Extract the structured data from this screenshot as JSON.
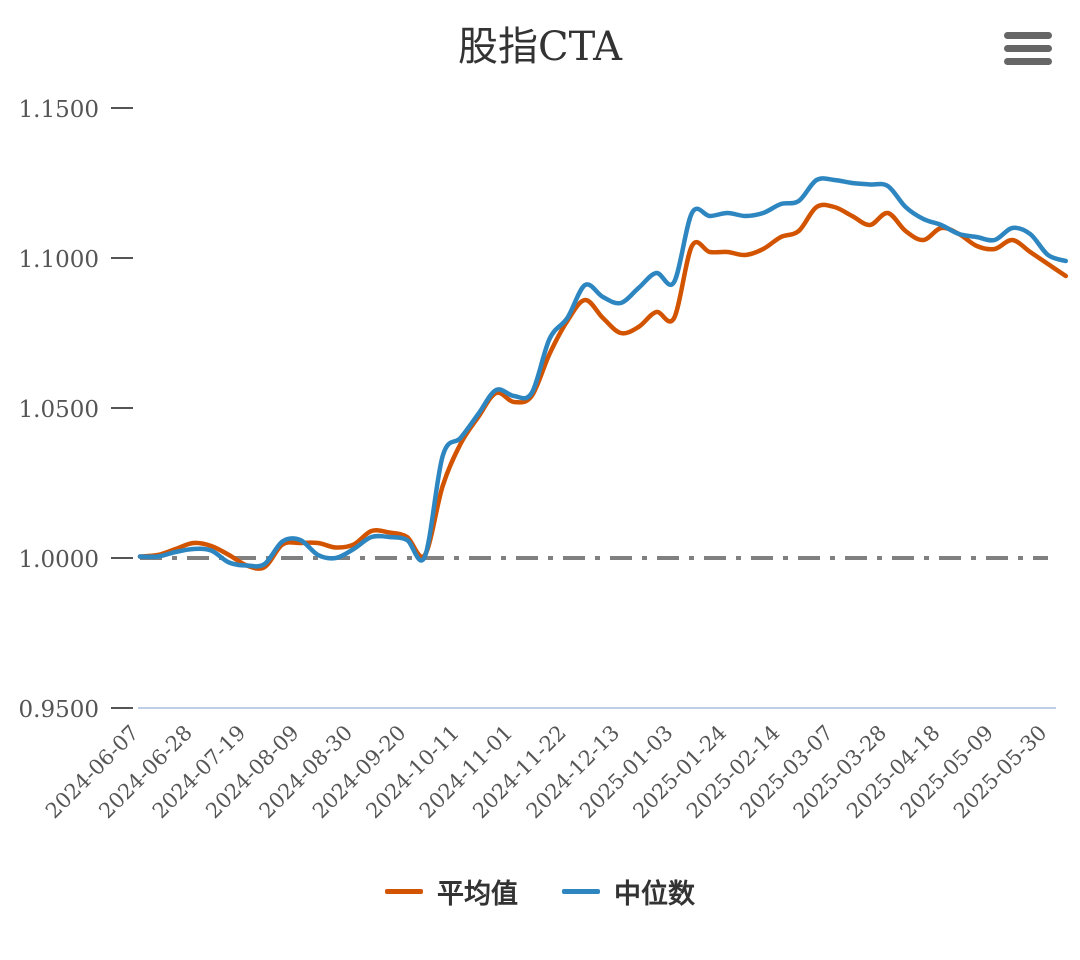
{
  "chart_data": {
    "type": "line",
    "title": "股指CTA",
    "ylim": [
      0.95,
      1.15
    ],
    "y_ticks": [
      "1.1500",
      "1.1000",
      "1.0500",
      "1.0000",
      "0.9500"
    ],
    "x_tick_labels": [
      "2024-06-07",
      "2024-06-28",
      "2024-07-19",
      "2024-08-09",
      "2024-08-30",
      "2024-09-20",
      "2024-10-11",
      "2024-11-01",
      "2024-11-22",
      "2024-12-13",
      "2025-01-03",
      "2025-01-24",
      "2025-02-14",
      "2025-03-07",
      "2025-03-28",
      "2025-04-18",
      "2025-05-09",
      "2025-05-30"
    ],
    "reference_line": {
      "value": 1.0,
      "style": "dash-dot",
      "color": "#808080"
    },
    "grid": false,
    "legend_position": "bottom",
    "series": [
      {
        "name": "平均值",
        "color": "#d35400",
        "points": [
          [
            "2024-06-07",
            1.0005
          ],
          [
            "2024-06-14",
            1.001
          ],
          [
            "2024-06-21",
            1.003
          ],
          [
            "2024-06-28",
            1.005
          ],
          [
            "2024-07-05",
            1.004
          ],
          [
            "2024-07-12",
            1.001
          ],
          [
            "2024-07-19",
            0.9975
          ],
          [
            "2024-07-26",
            0.997
          ],
          [
            "2024-08-02",
            1.0045
          ],
          [
            "2024-08-09",
            1.005
          ],
          [
            "2024-08-16",
            1.005
          ],
          [
            "2024-08-23",
            1.0035
          ],
          [
            "2024-08-30",
            1.0045
          ],
          [
            "2024-09-06",
            1.009
          ],
          [
            "2024-09-13",
            1.0085
          ],
          [
            "2024-09-20",
            1.007
          ],
          [
            "2024-09-27",
            1.001
          ],
          [
            "2024-10-04",
            1.024
          ],
          [
            "2024-10-11",
            1.038
          ],
          [
            "2024-10-18",
            1.047
          ],
          [
            "2024-10-25",
            1.055
          ],
          [
            "2024-11-01",
            1.052
          ],
          [
            "2024-11-08",
            1.054
          ],
          [
            "2024-11-15",
            1.068
          ],
          [
            "2024-11-22",
            1.079
          ],
          [
            "2024-11-29",
            1.086
          ],
          [
            "2024-12-06",
            1.08
          ],
          [
            "2024-12-13",
            1.075
          ],
          [
            "2024-12-20",
            1.077
          ],
          [
            "2024-12-27",
            1.082
          ],
          [
            "2025-01-03",
            1.08
          ],
          [
            "2025-01-10",
            1.104
          ],
          [
            "2025-01-17",
            1.102
          ],
          [
            "2025-01-24",
            1.102
          ],
          [
            "2025-01-31",
            1.101
          ],
          [
            "2025-02-07",
            1.103
          ],
          [
            "2025-02-14",
            1.107
          ],
          [
            "2025-02-21",
            1.109
          ],
          [
            "2025-02-28",
            1.117
          ],
          [
            "2025-03-07",
            1.117
          ],
          [
            "2025-03-14",
            1.114
          ],
          [
            "2025-03-21",
            1.111
          ],
          [
            "2025-03-28",
            1.115
          ],
          [
            "2025-04-04",
            1.109
          ],
          [
            "2025-04-11",
            1.106
          ],
          [
            "2025-04-18",
            1.11
          ],
          [
            "2025-04-25",
            1.108
          ],
          [
            "2025-05-02",
            1.104
          ],
          [
            "2025-05-09",
            1.103
          ],
          [
            "2025-05-16",
            1.106
          ],
          [
            "2025-05-23",
            1.102
          ],
          [
            "2025-05-30",
            1.098
          ],
          [
            "2025-06-06",
            1.094
          ]
        ]
      },
      {
        "name": "中位数",
        "color": "#2e86c1",
        "points": [
          [
            "2024-06-07",
            1.0005
          ],
          [
            "2024-06-14",
            1.0005
          ],
          [
            "2024-06-21",
            1.002
          ],
          [
            "2024-06-28",
            1.003
          ],
          [
            "2024-07-05",
            1.0025
          ],
          [
            "2024-07-12",
            0.9985
          ],
          [
            "2024-07-19",
            0.9975
          ],
          [
            "2024-07-26",
            0.998
          ],
          [
            "2024-08-02",
            1.0055
          ],
          [
            "2024-08-09",
            1.006
          ],
          [
            "2024-08-16",
            1.001
          ],
          [
            "2024-08-23",
            1.0
          ],
          [
            "2024-08-30",
            1.003
          ],
          [
            "2024-09-06",
            1.007
          ],
          [
            "2024-09-13",
            1.007
          ],
          [
            "2024-09-20",
            1.006
          ],
          [
            "2024-09-27",
            1.0005
          ],
          [
            "2024-10-04",
            1.034
          ],
          [
            "2024-10-11",
            1.04
          ],
          [
            "2024-10-18",
            1.048
          ],
          [
            "2024-10-25",
            1.056
          ],
          [
            "2024-11-01",
            1.054
          ],
          [
            "2024-11-08",
            1.055
          ],
          [
            "2024-11-15",
            1.073
          ],
          [
            "2024-11-22",
            1.08
          ],
          [
            "2024-11-29",
            1.091
          ],
          [
            "2024-12-06",
            1.087
          ],
          [
            "2024-12-13",
            1.085
          ],
          [
            "2024-12-20",
            1.09
          ],
          [
            "2024-12-27",
            1.095
          ],
          [
            "2025-01-03",
            1.092
          ],
          [
            "2025-01-10",
            1.115
          ],
          [
            "2025-01-17",
            1.114
          ],
          [
            "2025-01-24",
            1.115
          ],
          [
            "2025-01-31",
            1.114
          ],
          [
            "2025-02-07",
            1.115
          ],
          [
            "2025-02-14",
            1.118
          ],
          [
            "2025-02-21",
            1.119
          ],
          [
            "2025-02-28",
            1.126
          ],
          [
            "2025-03-07",
            1.126
          ],
          [
            "2025-03-14",
            1.125
          ],
          [
            "2025-03-21",
            1.1245
          ],
          [
            "2025-03-28",
            1.124
          ],
          [
            "2025-04-04",
            1.117
          ],
          [
            "2025-04-11",
            1.113
          ],
          [
            "2025-04-18",
            1.111
          ],
          [
            "2025-04-25",
            1.108
          ],
          [
            "2025-05-02",
            1.107
          ],
          [
            "2025-05-09",
            1.106
          ],
          [
            "2025-05-16",
            1.11
          ],
          [
            "2025-05-23",
            1.108
          ],
          [
            "2025-05-30",
            1.101
          ],
          [
            "2025-06-06",
            1.099
          ]
        ]
      }
    ]
  },
  "menu": {
    "icon": "menu-icon"
  }
}
